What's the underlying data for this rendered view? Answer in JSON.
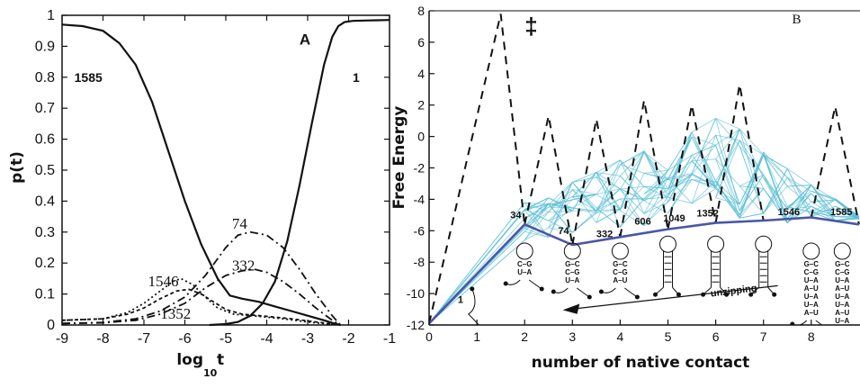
{
  "chart_data": [
    {
      "panel": "A",
      "type": "line",
      "xlabel": "log",
      "xlabel_subscript": "10",
      "xlabel_suffix": "t",
      "ylabel": "p(t)",
      "xlim": [
        -9,
        -1
      ],
      "ylim": [
        0,
        1
      ],
      "xticks": [
        -9,
        -8,
        -7,
        -6,
        -5,
        -4,
        -3,
        -2,
        -1
      ],
      "yticks": [
        0,
        0.1,
        0.2,
        0.3,
        0.4,
        0.5,
        0.6,
        0.7,
        0.8,
        0.9,
        1
      ],
      "series": [
        {
          "name": "1585",
          "style": "solid",
          "x": [
            -9,
            -8.5,
            -8,
            -7.6,
            -7.2,
            -6.8,
            -6.4,
            -6,
            -5.6,
            -5.2,
            -4.9,
            -4.6,
            -4.2,
            -3.8,
            -3.4,
            -3,
            -2.6,
            -2.3,
            -2.2
          ],
          "y": [
            0.97,
            0.965,
            0.95,
            0.91,
            0.84,
            0.72,
            0.56,
            0.4,
            0.26,
            0.15,
            0.095,
            0.085,
            0.075,
            0.06,
            0.045,
            0.03,
            0.015,
            0.003,
            0
          ]
        },
        {
          "name": "1",
          "style": "solid",
          "x": [
            -5.4,
            -5,
            -4.7,
            -4.4,
            -4.1,
            -3.8,
            -3.5,
            -3.2,
            -2.9,
            -2.6,
            -2.4,
            -2.25,
            -2.1,
            -1.9,
            -1.6,
            -1.3,
            -1
          ],
          "y": [
            0,
            0.003,
            0.01,
            0.03,
            0.07,
            0.14,
            0.27,
            0.45,
            0.65,
            0.84,
            0.93,
            0.965,
            0.978,
            0.982,
            0.983,
            0.984,
            0.985
          ]
        },
        {
          "name": "74",
          "style": "dash-dot",
          "x": [
            -9,
            -8,
            -7.2,
            -6.6,
            -6,
            -5.5,
            -5,
            -4.7,
            -4.4,
            -4,
            -3.6,
            -3.2,
            -2.8,
            -2.4,
            -2.2
          ],
          "y": [
            0.005,
            0.008,
            0.02,
            0.045,
            0.09,
            0.16,
            0.25,
            0.29,
            0.3,
            0.29,
            0.25,
            0.18,
            0.1,
            0.03,
            0
          ]
        },
        {
          "name": "332",
          "style": "dash-dot",
          "x": [
            -9,
            -8,
            -7.2,
            -6.6,
            -6,
            -5.5,
            -5,
            -4.6,
            -4.3,
            -4,
            -3.6,
            -3.2,
            -2.8,
            -2.4,
            -2.2
          ],
          "y": [
            0.005,
            0.007,
            0.015,
            0.035,
            0.07,
            0.12,
            0.16,
            0.175,
            0.18,
            0.17,
            0.14,
            0.1,
            0.055,
            0.015,
            0
          ]
        },
        {
          "name": "1546",
          "style": "dotted",
          "x": [
            -9,
            -8,
            -7.4,
            -7,
            -6.6,
            -6.3,
            -6.1,
            -5.8,
            -5.5,
            -5.2,
            -4.8,
            -4.2,
            -3.6,
            -3,
            -2.5,
            -2.2
          ],
          "y": [
            0.015,
            0.02,
            0.04,
            0.07,
            0.11,
            0.14,
            0.15,
            0.13,
            0.09,
            0.055,
            0.035,
            0.028,
            0.02,
            0.01,
            0.003,
            0
          ]
        },
        {
          "name": "1352",
          "style": "dashed",
          "x": [
            -9,
            -8,
            -7.4,
            -7,
            -6.6,
            -6.2,
            -5.9,
            -5.6,
            -5.3,
            -5,
            -4.6,
            -4,
            -3.4,
            -2.8,
            -2.4,
            -2.2
          ],
          "y": [
            0.015,
            0.02,
            0.035,
            0.055,
            0.085,
            0.11,
            0.115,
            0.1,
            0.075,
            0.05,
            0.035,
            0.028,
            0.02,
            0.01,
            0.003,
            0
          ]
        }
      ],
      "annotations": [
        {
          "text": "A",
          "x": -3.2,
          "y": 0.92
        },
        {
          "text": "1585",
          "x": -8.7,
          "y": 0.8
        },
        {
          "text": "1",
          "x": -1.9,
          "y": 0.8
        },
        {
          "text": "74",
          "x": -4.85,
          "y": 0.325
        },
        {
          "text": "332",
          "x": -4.85,
          "y": 0.19
        },
        {
          "text": "1546",
          "x": -6.9,
          "y": 0.14
        },
        {
          "text": "1352",
          "x": -6.6,
          "y": 0.035
        }
      ]
    },
    {
      "panel": "B",
      "type": "line",
      "xlabel": "number of native contact",
      "ylabel": "Free Energy",
      "xlim": [
        0,
        9
      ],
      "ylim": [
        -12,
        8
      ],
      "xticks": [
        0,
        1,
        2,
        3,
        4,
        5,
        6,
        7,
        8
      ],
      "yticks": [
        -12,
        -10,
        -8,
        -6,
        -4,
        -2,
        0,
        2,
        4,
        6,
        8
      ],
      "pathway": {
        "x": [
          0,
          2,
          3,
          4,
          5,
          6,
          7,
          8,
          9
        ],
        "y": [
          -11.9,
          -5.6,
          -6.9,
          -6.4,
          -5.9,
          -5.5,
          -5.35,
          -5.15,
          -5.6
        ],
        "color": "#4a56a8"
      },
      "barriers": [
        {
          "x": [
            0,
            1.5,
            2
          ],
          "y": [
            -11.9,
            7.8,
            -5.6
          ]
        },
        {
          "x": [
            2,
            2.5,
            3
          ],
          "y": [
            -5.6,
            1.3,
            -6.9
          ]
        },
        {
          "x": [
            3,
            3.5,
            4
          ],
          "y": [
            -6.9,
            1.1,
            -6.4
          ]
        },
        {
          "x": [
            4,
            4.5,
            5
          ],
          "y": [
            -6.4,
            2.3,
            -5.9
          ]
        },
        {
          "x": [
            5,
            5.5,
            6
          ],
          "y": [
            -5.9,
            2.0,
            -5.5
          ]
        },
        {
          "x": [
            6,
            6.5,
            7
          ],
          "y": [
            -5.5,
            3.3,
            -5.35
          ]
        },
        {
          "x": [
            8,
            8.5,
            9
          ],
          "y": [
            -5.15,
            1.9,
            -5.6
          ]
        }
      ],
      "network_color": "#5bbfd6",
      "annotations": [
        {
          "text": "B",
          "x": 7.6,
          "y": 7.2
        },
        {
          "text": "‡",
          "x": 2.0,
          "y": 6.5
        },
        {
          "text": "1",
          "x": 0.6,
          "y": -10.6
        },
        {
          "text": "34",
          "x": 1.7,
          "y": -5.2
        },
        {
          "text": "74",
          "x": 2.7,
          "y": -6.2
        },
        {
          "text": "332",
          "x": 3.5,
          "y": -6.4
        },
        {
          "text": "606",
          "x": 4.3,
          "y": -5.6
        },
        {
          "text": "1049",
          "x": 4.9,
          "y": -5.4
        },
        {
          "text": "1352",
          "x": 5.6,
          "y": -5.1
        },
        {
          "text": "1546",
          "x": 7.3,
          "y": -5.0
        },
        {
          "text": "1585",
          "x": 8.4,
          "y": -5.0
        },
        {
          "text": "unzipping",
          "x": 5.9,
          "y": -10.2
        }
      ],
      "hairpins": [
        {
          "x": 2.0,
          "pairs": [
            "C–G",
            "U–A"
          ]
        },
        {
          "x": 3.0,
          "pairs": [
            "G–C",
            "C–G",
            "U–A"
          ]
        },
        {
          "x": 4.0,
          "pairs": [
            "G–C",
            "C–G",
            "A–U"
          ]
        },
        {
          "x": 8.0,
          "pairs": [
            "G–C",
            "C–G",
            "U–A",
            "A–U",
            "U–A",
            "U–A",
            "A–U"
          ]
        },
        {
          "x": 8.65,
          "pairs": [
            "G–C",
            "C–G",
            "U–A",
            "A–U",
            "U–A",
            "U–A",
            "A–U",
            "U–A"
          ]
        }
      ]
    }
  ]
}
